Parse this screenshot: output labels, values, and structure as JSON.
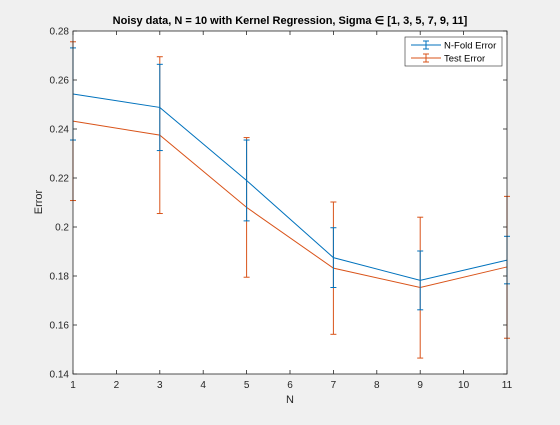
{
  "chart_data": {
    "type": "line",
    "title": "Noisy data, N = 10 with Kernel Regression, Sigma ∈ [1, 3, 5, 7, 9, 11]",
    "xlabel": "N",
    "ylabel": "Error",
    "xlim": [
      1,
      11
    ],
    "ylim": [
      0.14,
      0.28
    ],
    "xticks": [
      1,
      2,
      3,
      4,
      5,
      6,
      7,
      8,
      9,
      10,
      11
    ],
    "yticks": [
      0.14,
      0.16,
      0.18,
      0.2,
      0.22,
      0.24,
      0.26,
      0.28
    ],
    "ytick_labels": [
      "0.14",
      "0.16",
      "0.18",
      "0.2",
      "0.22",
      "0.24",
      "0.26",
      "0.28"
    ],
    "grid": false,
    "legend_position": "top-right",
    "x": [
      1,
      3,
      5,
      7,
      9,
      11
    ],
    "series": [
      {
        "name": "N-Fold Error",
        "color": "#0072bd",
        "values": [
          0.2543,
          0.2488,
          0.219,
          0.1875,
          0.1782,
          0.1865
        ],
        "err_low": [
          0.2355,
          0.2312,
          0.2025,
          0.1753,
          0.1662,
          0.1768
        ],
        "err_high": [
          0.2731,
          0.2664,
          0.2355,
          0.1997,
          0.1902,
          0.1962
        ]
      },
      {
        "name": "Test Error",
        "color": "#d95319",
        "values": [
          0.2432,
          0.2375,
          0.208,
          0.1832,
          0.1753,
          0.1837
        ],
        "err_low": [
          0.2108,
          0.2055,
          0.1795,
          0.1562,
          0.1465,
          0.1546
        ],
        "err_high": [
          0.2756,
          0.2695,
          0.2365,
          0.2102,
          0.204,
          0.2125
        ]
      }
    ]
  }
}
